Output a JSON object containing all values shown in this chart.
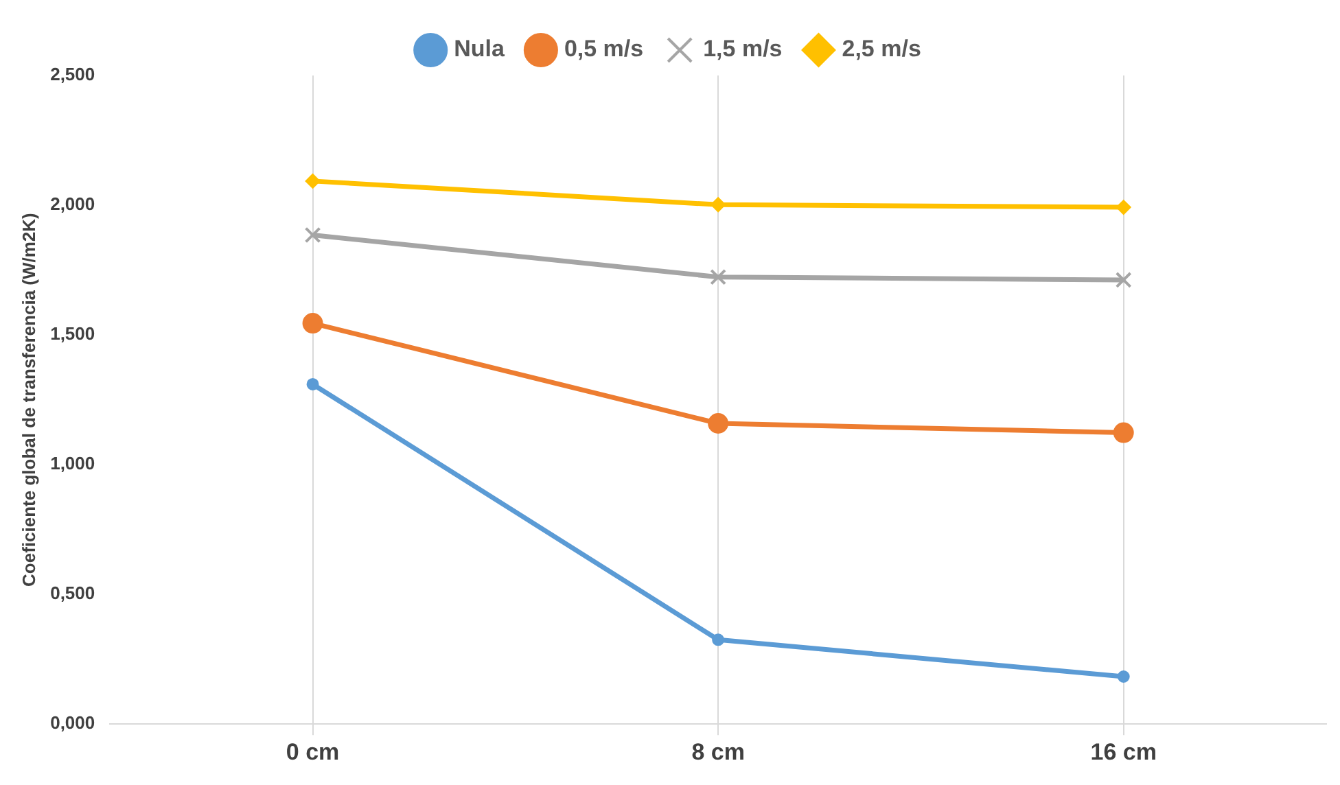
{
  "chart_data": {
    "type": "line",
    "ylabel": "Coeficiente global de transferencia (W/m2K)",
    "categories": [
      "0 cm",
      "8 cm",
      "16 cm"
    ],
    "series": [
      {
        "name": "Nula",
        "color": "#5b9bd5",
        "marker": "circle",
        "values": [
          1.31,
          0.325,
          0.183
        ]
      },
      {
        "name": "0,5 m/s",
        "color": "#ed7d31",
        "marker": "circle",
        "values": [
          1.545,
          1.159,
          1.123
        ]
      },
      {
        "name": "1,5 m/s",
        "color": "#a5a5a5",
        "marker": "cross",
        "values": [
          1.885,
          1.723,
          1.712
        ]
      },
      {
        "name": "2,5 m/s",
        "color": "#ffc000",
        "marker": "diamond",
        "values": [
          2.093,
          2.002,
          1.992
        ]
      }
    ],
    "ylim": [
      0,
      2.5
    ],
    "yticks": [
      {
        "value": 0,
        "label": "0,000"
      },
      {
        "value": 0.5,
        "label": "0,500"
      },
      {
        "value": 1,
        "label": "1,000"
      },
      {
        "value": 1.5,
        "label": "1,500"
      },
      {
        "value": 2,
        "label": "2,000"
      },
      {
        "value": 2.5,
        "label": "2,500"
      }
    ],
    "grid": "x",
    "legend": "top",
    "line_style": "solid"
  }
}
